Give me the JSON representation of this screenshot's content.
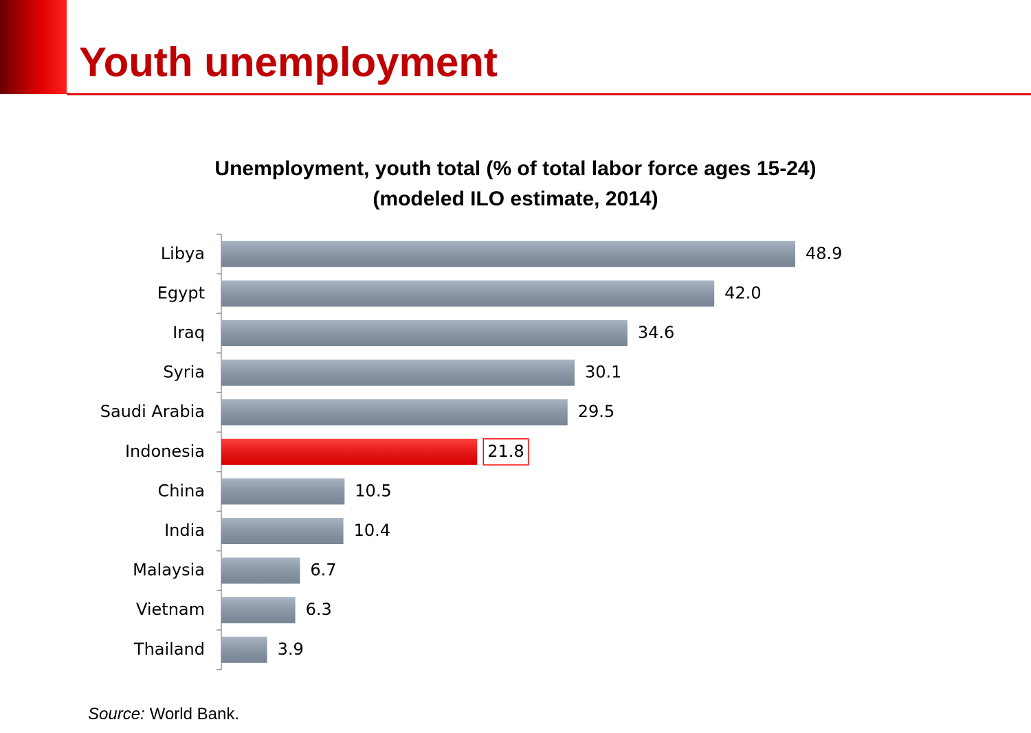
{
  "header": {
    "title": "Youth unemployment"
  },
  "chart_data": {
    "type": "bar",
    "orientation": "horizontal",
    "title": [
      "Unemployment, youth total (% of total labor force ages 15-24)",
      "(modeled ILO estimate, 2014)"
    ],
    "categories": [
      "Libya",
      "Egypt",
      "Iraq",
      "Syria",
      "Saudi Arabia",
      "Indonesia",
      "China",
      "India",
      "Malaysia",
      "Vietnam",
      "Thailand"
    ],
    "values": [
      48.9,
      42.0,
      34.6,
      30.1,
      29.5,
      21.8,
      10.5,
      10.4,
      6.7,
      6.3,
      3.9
    ],
    "value_labels": [
      "48.9",
      "42.0",
      "34.6",
      "30.1",
      "29.5",
      "21.8",
      "10.5",
      "10.4",
      "6.7",
      "6.3",
      "3.9"
    ],
    "colors": [
      "#8e9db0",
      "#8e9db0",
      "#8e9db0",
      "#8e9db0",
      "#8e9db0",
      "#ff0000",
      "#8e9db0",
      "#8e9db0",
      "#8e9db0",
      "#8e9db0",
      "#8e9db0"
    ],
    "highlight": "Indonesia"
  },
  "source": {
    "label": "Source:",
    "text": "World Bank."
  }
}
